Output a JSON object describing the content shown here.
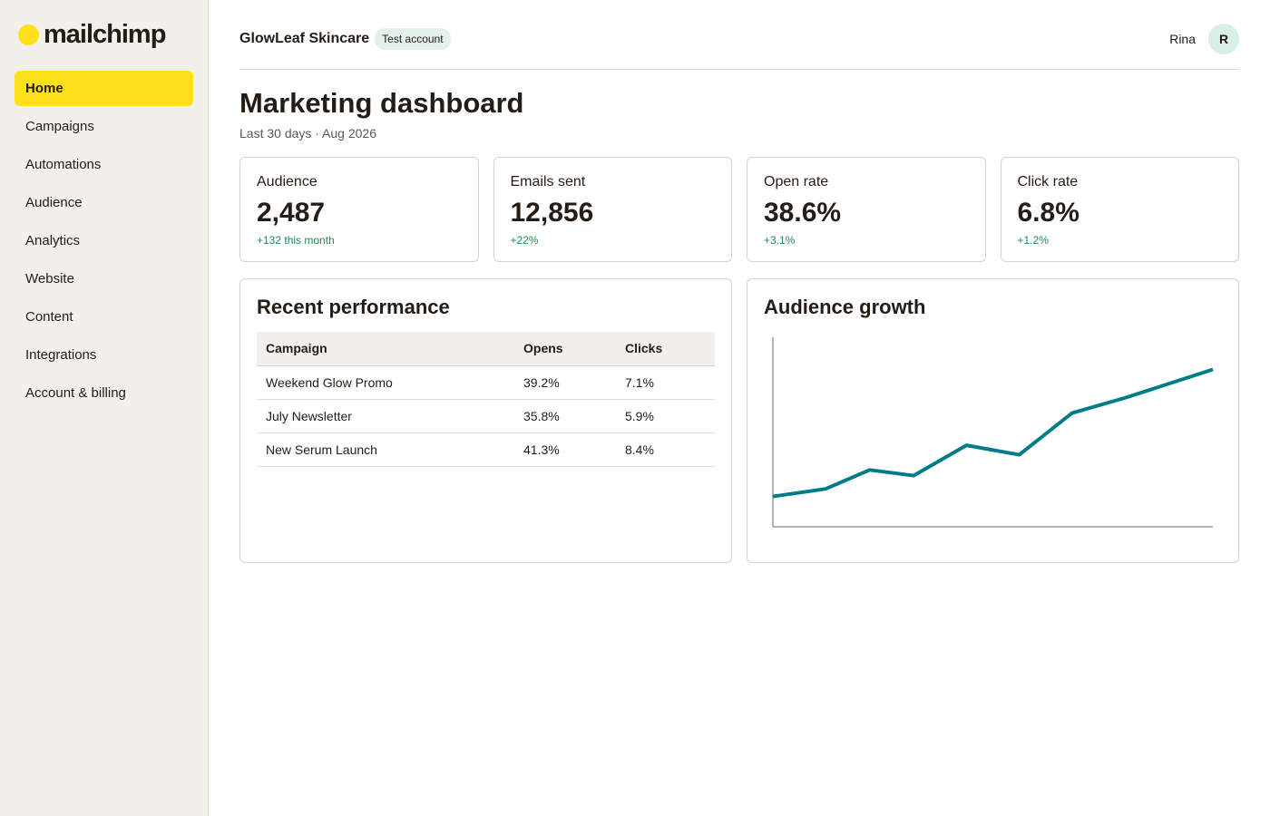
{
  "brand": {
    "logo_text": "mailchimp",
    "accent": "#ffe01b"
  },
  "nav": {
    "items": [
      {
        "label": "Home",
        "active": true
      },
      {
        "label": "Campaigns"
      },
      {
        "label": "Automations"
      },
      {
        "label": "Audience"
      },
      {
        "label": "Analytics"
      },
      {
        "label": "Website"
      },
      {
        "label": "Content"
      },
      {
        "label": "Integrations"
      },
      {
        "label": "Account & billing"
      }
    ]
  },
  "header": {
    "org_name": "GlowLeaf Skincare",
    "account_badge": "Test account",
    "user_name": "Rina",
    "avatar_initial": "R"
  },
  "page": {
    "title": "Marketing dashboard",
    "subtitle": "Last 30 days · Aug 2026"
  },
  "stats": [
    {
      "label": "Audience",
      "value": "2,487",
      "delta": "+132 this month"
    },
    {
      "label": "Emails sent",
      "value": "12,856",
      "delta": "+22%"
    },
    {
      "label": "Open rate",
      "value": "38.6%",
      "delta": "+3.1%"
    },
    {
      "label": "Click rate",
      "value": "6.8%",
      "delta": "+1.2%"
    }
  ],
  "performance": {
    "title": "Recent performance",
    "columns": [
      "Campaign",
      "Opens",
      "Clicks"
    ],
    "rows": [
      {
        "campaign": "Weekend Glow Promo",
        "opens": "39.2%",
        "clicks": "7.1%"
      },
      {
        "campaign": "July Newsletter",
        "opens": "35.8%",
        "clicks": "5.9%"
      },
      {
        "campaign": "New Serum Launch",
        "opens": "41.3%",
        "clicks": "8.4%"
      }
    ]
  },
  "growth": {
    "title": "Audience growth",
    "line_color": "#007c89",
    "chart_data": {
      "type": "line",
      "x": [
        0,
        12,
        22,
        32,
        44,
        56,
        68,
        80,
        100
      ],
      "y": [
        16,
        20,
        30,
        27,
        43,
        38,
        60,
        68,
        83
      ],
      "ylim": [
        0,
        100
      ],
      "xlim": [
        0,
        100
      ]
    }
  }
}
